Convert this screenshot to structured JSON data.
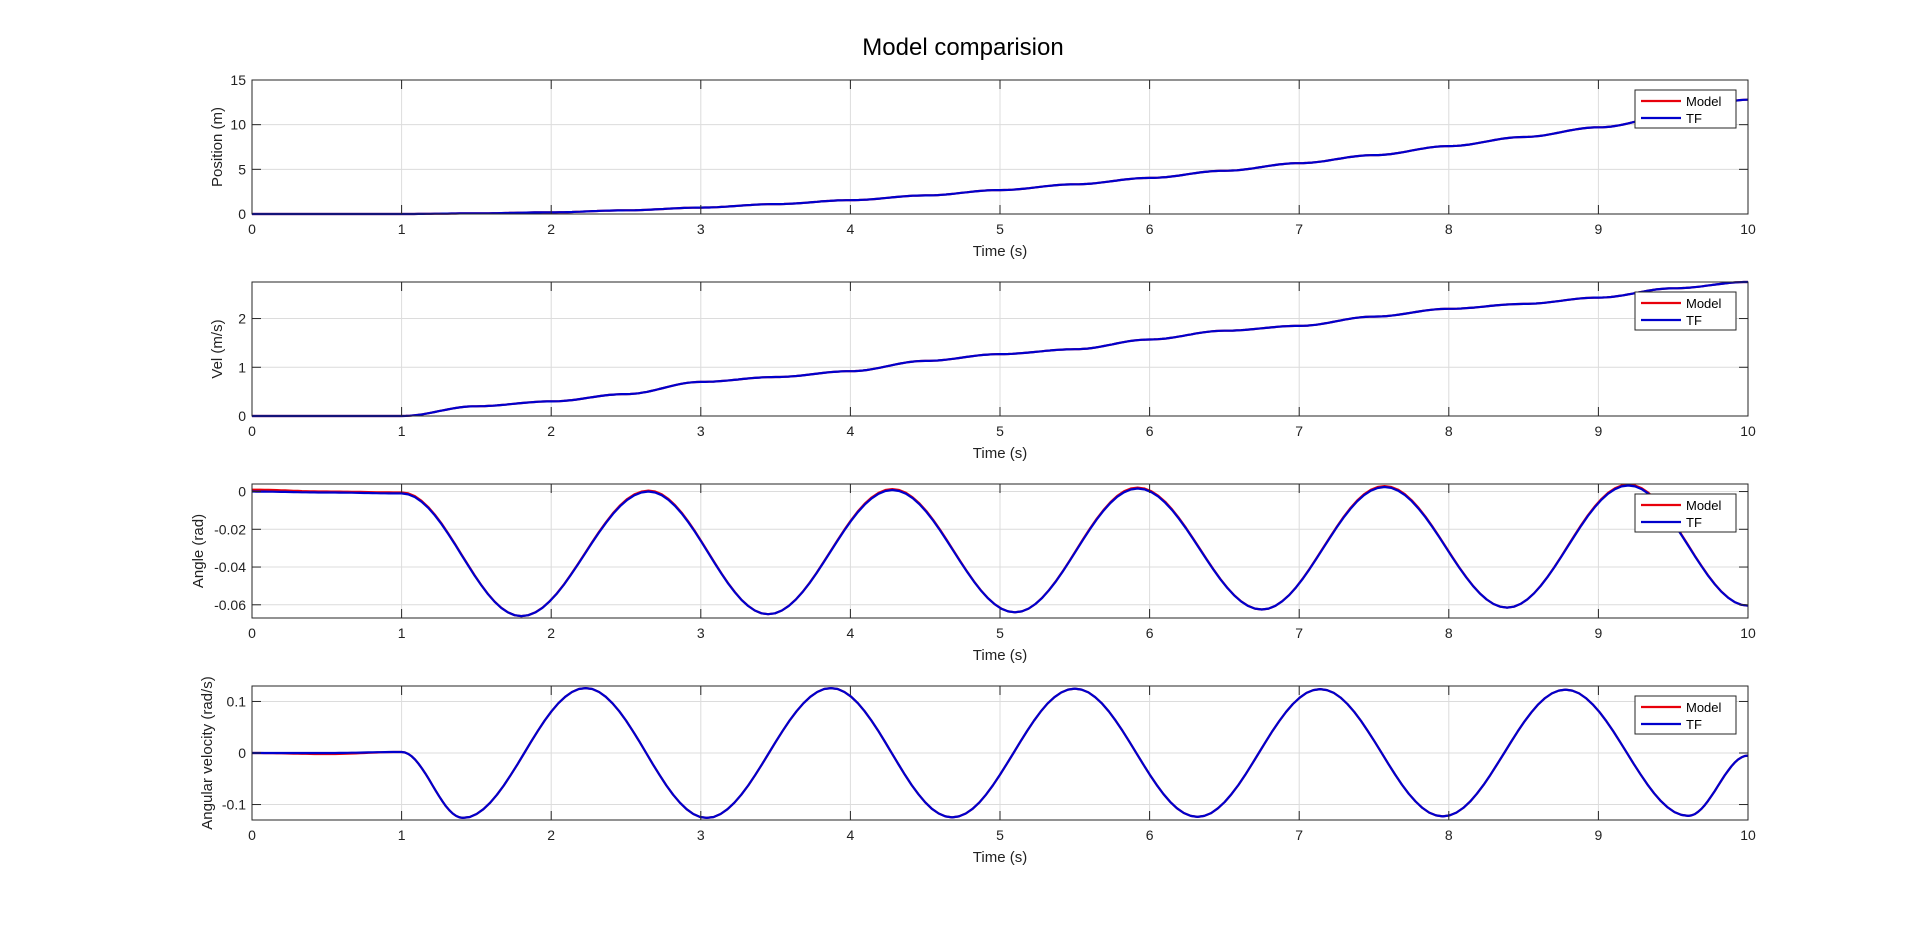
{
  "figure": {
    "title": "Model comparision"
  },
  "colors": {
    "model": "#e8000b",
    "tf": "#0000cc",
    "grid": "#dcdcdc",
    "axes": "#262626"
  },
  "chart_data": [
    {
      "type": "line",
      "ylabel": "Position (m)",
      "xlabel": "Time (s)",
      "xlim": [
        0,
        10
      ],
      "ylim": [
        0,
        15
      ],
      "xticks": [
        "0",
        "1",
        "2",
        "3",
        "4",
        "5",
        "6",
        "7",
        "8",
        "9",
        "10"
      ],
      "yticks": [
        "0",
        "5",
        "10",
        "15"
      ],
      "ytick_values": [
        0,
        5,
        10,
        15
      ],
      "grid": true,
      "legend": {
        "position": "top-right",
        "entries": [
          "Model",
          "TF"
        ]
      },
      "series": [
        {
          "name": "Model",
          "x": [
            0,
            1,
            1.5,
            2,
            2.5,
            3,
            3.5,
            4,
            4.5,
            5,
            5.5,
            6,
            6.5,
            7,
            7.5,
            8,
            8.5,
            9,
            9.5,
            10
          ],
          "y": [
            0,
            0,
            0.07,
            0.19,
            0.41,
            0.72,
            1.11,
            1.55,
            2.08,
            2.68,
            3.32,
            4.04,
            4.84,
            5.69,
            6.59,
            7.6,
            8.62,
            9.7,
            10.99,
            12.8
          ]
        },
        {
          "name": "TF",
          "x": [
            0,
            1,
            1.5,
            2,
            2.5,
            3,
            3.5,
            4,
            4.5,
            5,
            5.5,
            6,
            6.5,
            7,
            7.5,
            8,
            8.5,
            9,
            9.5,
            10
          ],
          "y": [
            0,
            0,
            0.07,
            0.19,
            0.41,
            0.72,
            1.11,
            1.55,
            2.08,
            2.68,
            3.32,
            4.04,
            4.84,
            5.69,
            6.59,
            7.6,
            8.62,
            9.7,
            10.99,
            12.8
          ]
        }
      ]
    },
    {
      "type": "line",
      "ylabel": "Vel (m/s)",
      "xlabel": "Time (s)",
      "xlim": [
        0,
        10
      ],
      "ylim": [
        0,
        2.75
      ],
      "xticks": [
        "0",
        "1",
        "2",
        "3",
        "4",
        "5",
        "6",
        "7",
        "8",
        "9",
        "10"
      ],
      "yticks": [
        "0",
        "1",
        "2"
      ],
      "ytick_values": [
        0,
        1,
        2
      ],
      "grid": true,
      "legend": {
        "position": "top-right",
        "entries": [
          "Model",
          "TF"
        ]
      },
      "series": [
        {
          "name": "Model",
          "x": [
            0,
            1,
            1.5,
            2,
            2.5,
            3,
            3.5,
            4,
            4.5,
            5,
            5.5,
            6,
            6.5,
            7,
            7.5,
            8,
            8.5,
            9,
            9.5,
            10
          ],
          "y": [
            0,
            0,
            0.2,
            0.3,
            0.45,
            0.7,
            0.8,
            0.92,
            1.13,
            1.27,
            1.37,
            1.57,
            1.75,
            1.85,
            2.04,
            2.2,
            2.3,
            2.43,
            2.62,
            2.75
          ]
        },
        {
          "name": "TF",
          "x": [
            0,
            1,
            1.5,
            2,
            2.5,
            3,
            3.5,
            4,
            4.5,
            5,
            5.5,
            6,
            6.5,
            7,
            7.5,
            8,
            8.5,
            9,
            9.5,
            10
          ],
          "y": [
            0,
            0,
            0.2,
            0.3,
            0.45,
            0.7,
            0.8,
            0.92,
            1.13,
            1.27,
            1.37,
            1.57,
            1.75,
            1.85,
            2.04,
            2.2,
            2.3,
            2.43,
            2.62,
            2.75
          ]
        }
      ]
    },
    {
      "type": "line",
      "ylabel": "Angle (rad)",
      "xlabel": "Time (s)",
      "xlim": [
        0,
        10
      ],
      "ylim": [
        -0.067,
        0.004
      ],
      "xticks": [
        "0",
        "1",
        "2",
        "3",
        "4",
        "5",
        "6",
        "7",
        "8",
        "9",
        "10"
      ],
      "yticks": [
        "0",
        "-0.02",
        "-0.04",
        "-0.06"
      ],
      "ytick_values": [
        0,
        -0.02,
        -0.04,
        -0.06
      ],
      "grid": true,
      "legend": {
        "position": "top-right",
        "entries": [
          "Model",
          "TF"
        ]
      },
      "series": [
        {
          "name": "Model",
          "x": [
            0,
            0.5,
            1,
            1.8,
            2.65,
            3.45,
            4.28,
            5.1,
            5.92,
            6.75,
            7.57,
            8.39,
            9.2,
            10
          ],
          "y": [
            0.001,
            0.0,
            -0.0005,
            -0.066,
            0.0005,
            -0.065,
            0.0013,
            -0.064,
            0.0021,
            -0.0625,
            0.0029,
            -0.0615,
            0.0037,
            -0.0605
          ]
        },
        {
          "name": "TF",
          "x": [
            0,
            0.5,
            1,
            1.8,
            2.65,
            3.45,
            4.28,
            5.1,
            5.92,
            6.75,
            7.57,
            8.39,
            9.2,
            10
          ],
          "y": [
            0.0,
            -0.0005,
            -0.001,
            -0.066,
            0.0,
            -0.065,
            0.0008,
            -0.064,
            0.0016,
            -0.0625,
            0.0024,
            -0.0615,
            0.0032,
            -0.0605
          ]
        }
      ]
    },
    {
      "type": "line",
      "ylabel": "Angular velocity (rad/s)",
      "xlabel": "Time (s)",
      "xlim": [
        0,
        10
      ],
      "ylim": [
        -0.13,
        0.13
      ],
      "xticks": [
        "0",
        "1",
        "2",
        "3",
        "4",
        "5",
        "6",
        "7",
        "8",
        "9",
        "10"
      ],
      "yticks": [
        "0.1",
        "0",
        "-0.1"
      ],
      "ytick_values": [
        0.1,
        0,
        -0.1
      ],
      "grid": true,
      "legend": {
        "position": "top-right",
        "entries": [
          "Model",
          "TF"
        ]
      },
      "series": [
        {
          "name": "Model",
          "x": [
            0,
            0.5,
            1,
            1.41,
            2.23,
            3.04,
            3.87,
            4.68,
            5.5,
            6.32,
            7.14,
            7.96,
            8.78,
            9.6,
            10
          ],
          "y": [
            0,
            -0.002,
            0.002,
            -0.126,
            0.126,
            -0.126,
            0.126,
            -0.125,
            0.125,
            -0.124,
            0.124,
            -0.123,
            0.123,
            -0.122,
            -0.005
          ]
        },
        {
          "name": "TF",
          "x": [
            0,
            0.5,
            1,
            1.41,
            2.23,
            3.04,
            3.87,
            4.68,
            5.5,
            6.32,
            7.14,
            7.96,
            8.78,
            9.6,
            10
          ],
          "y": [
            0,
            0.0,
            0.002,
            -0.126,
            0.126,
            -0.126,
            0.126,
            -0.125,
            0.125,
            -0.124,
            0.124,
            -0.123,
            0.123,
            -0.122,
            -0.005
          ]
        }
      ]
    }
  ]
}
